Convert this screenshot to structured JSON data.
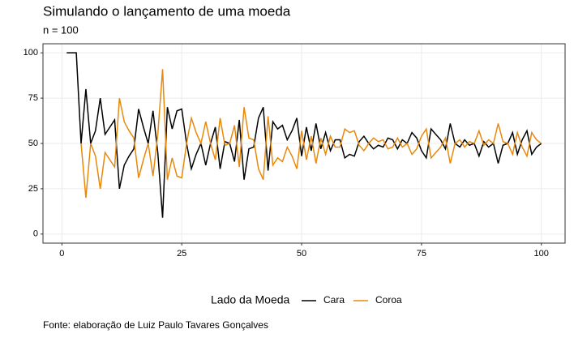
{
  "chart_data": {
    "type": "line",
    "title": "Simulando o lançamento de uma moeda",
    "subtitle": "n = 100",
    "caption": "Fonte: elaboração de Luiz Paulo Tavares Gonçalves",
    "legend_title": "Lado da Moeda",
    "legend_position": "bottom",
    "grid": true,
    "x": [
      1,
      2,
      3,
      4,
      5,
      6,
      7,
      8,
      9,
      10,
      11,
      12,
      13,
      14,
      15,
      16,
      17,
      18,
      19,
      20,
      21,
      22,
      23,
      24,
      25,
      26,
      27,
      28,
      29,
      30,
      31,
      32,
      33,
      34,
      35,
      36,
      37,
      38,
      39,
      40,
      41,
      42,
      43,
      44,
      45,
      46,
      47,
      48,
      49,
      50,
      51,
      52,
      53,
      54,
      55,
      56,
      57,
      58,
      59,
      60,
      61,
      62,
      63,
      64,
      65,
      66,
      67,
      68,
      69,
      70,
      71,
      72,
      73,
      74,
      75,
      76,
      77,
      78,
      79,
      80,
      81,
      82,
      83,
      84,
      85,
      86,
      87,
      88,
      89,
      90,
      91,
      92,
      93,
      94,
      95,
      96,
      97,
      98,
      99,
      100
    ],
    "xlim": [
      -3.95,
      104.95
    ],
    "xticks": [
      0,
      25,
      50,
      75,
      100
    ],
    "ylim": [
      -5,
      105
    ],
    "yticks": [
      0,
      25,
      50,
      75,
      100
    ],
    "series": [
      {
        "name": "Cara",
        "color": "#000000",
        "values": [
          100,
          100,
          100,
          50,
          80,
          50,
          57,
          75,
          55,
          59,
          63,
          25,
          38,
          43,
          47,
          69,
          59,
          50,
          68,
          45,
          9,
          70,
          58,
          68,
          69,
          50,
          36,
          44,
          50,
          38,
          50,
          59,
          36,
          51,
          50,
          40,
          63,
          30,
          47,
          48,
          64,
          70,
          35,
          62,
          58,
          60,
          52,
          57,
          64,
          43,
          59,
          46,
          61,
          47,
          56,
          46,
          52,
          52,
          42,
          44,
          43,
          51,
          54,
          50,
          47,
          49,
          48,
          53,
          52,
          47,
          52,
          50,
          56,
          53,
          46,
          42,
          58,
          55,
          52,
          47,
          61,
          50,
          48,
          52,
          49,
          50,
          43,
          51,
          48,
          50,
          39,
          49,
          50,
          56,
          44,
          52,
          57,
          44,
          48,
          50
        ]
      },
      {
        "name": "Coroa",
        "color": "#e8890c",
        "values": [
          null,
          null,
          null,
          50,
          20,
          50,
          43,
          25,
          45,
          41,
          37,
          75,
          62,
          57,
          53,
          31,
          41,
          50,
          32,
          55,
          91,
          30,
          42,
          32,
          31,
          50,
          64,
          56,
          50,
          62,
          50,
          41,
          64,
          49,
          50,
          60,
          37,
          70,
          53,
          52,
          36,
          30,
          65,
          38,
          42,
          40,
          48,
          43,
          36,
          57,
          41,
          54,
          39,
          53,
          44,
          54,
          48,
          48,
          58,
          56,
          57,
          49,
          46,
          50,
          53,
          51,
          52,
          47,
          48,
          53,
          48,
          50,
          44,
          47,
          54,
          58,
          42,
          45,
          48,
          53,
          39,
          50,
          52,
          48,
          51,
          50,
          57,
          49,
          52,
          50,
          61,
          51,
          50,
          44,
          56,
          48,
          43,
          56,
          52,
          50
        ]
      }
    ]
  }
}
